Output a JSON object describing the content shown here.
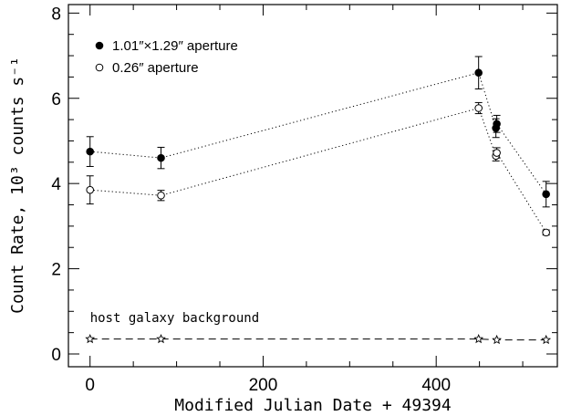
{
  "chart_data": {
    "type": "scatter",
    "xlabel": "Modified Julian Date + 49394",
    "ylabel": "Count Rate, 10³ counts s⁻¹",
    "xlim": [
      -25,
      540
    ],
    "ylim": [
      -0.3,
      8.2
    ],
    "x_ticks": [
      0,
      200,
      400
    ],
    "y_ticks": [
      0,
      2,
      4,
      6,
      8
    ],
    "legend_position": "top-left",
    "series": [
      {
        "name": "1.01″×1.29″ aperture",
        "marker": "filled-circle",
        "line": "dotted",
        "points": [
          {
            "x": 0,
            "y": 4.75,
            "err": 0.35
          },
          {
            "x": 82,
            "y": 4.6,
            "err": 0.25
          },
          {
            "x": 449,
            "y": 6.6,
            "err": 0.38
          },
          {
            "x": 469,
            "y": 5.3,
            "err": 0.22
          },
          {
            "x": 470,
            "y": 5.4,
            "err": 0.2
          },
          {
            "x": 527,
            "y": 3.75,
            "err": 0.3
          }
        ]
      },
      {
        "name": "0.26″ aperture",
        "marker": "open-circle",
        "line": "dotted",
        "points": [
          {
            "x": 0,
            "y": 3.85,
            "err": 0.33
          },
          {
            "x": 82,
            "y": 3.72,
            "err": 0.12
          },
          {
            "x": 449,
            "y": 5.77,
            "err": 0.13
          },
          {
            "x": 469,
            "y": 4.65,
            "err": 0.12
          },
          {
            "x": 470,
            "y": 4.72,
            "err": 0.12
          },
          {
            "x": 527,
            "y": 2.85,
            "err": 0.06
          }
        ]
      },
      {
        "name": "host galaxy background",
        "marker": "open-star",
        "line": "dashed",
        "points": [
          {
            "x": 0,
            "y": 0.35
          },
          {
            "x": 82,
            "y": 0.35
          },
          {
            "x": 449,
            "y": 0.35
          },
          {
            "x": 470,
            "y": 0.33
          },
          {
            "x": 527,
            "y": 0.33
          }
        ]
      }
    ],
    "annotations": [
      {
        "text": "host galaxy background",
        "x": 0,
        "y": 0.75
      }
    ]
  }
}
